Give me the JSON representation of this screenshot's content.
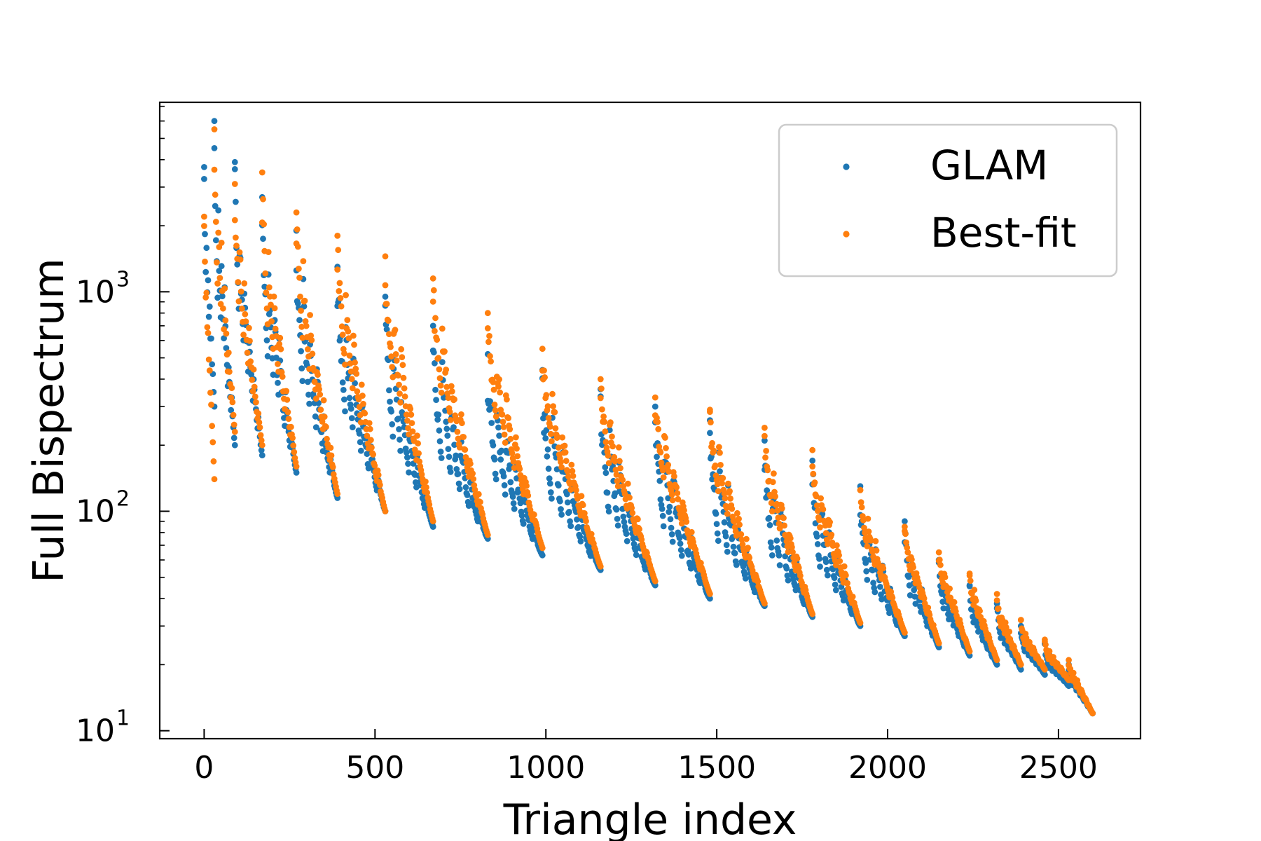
{
  "chart_data": {
    "type": "scatter",
    "xlabel": "Triangle index",
    "ylabel": "Full Bispectrum",
    "xlim": [
      -130,
      2740
    ],
    "ylim": [
      9.2,
      7300
    ],
    "yscale": "log",
    "x_ticks": [
      0,
      500,
      1000,
      1500,
      2000,
      2500
    ],
    "x_tick_labels": [
      "0",
      "500",
      "1000",
      "1500",
      "2000",
      "2500"
    ],
    "y_ticks": [
      10,
      100,
      1000
    ],
    "y_tick_labels": [
      {
        "base": "10",
        "exp": "1"
      },
      {
        "base": "10",
        "exp": "2"
      },
      {
        "base": "10",
        "exp": "3"
      }
    ],
    "legend": {
      "position": "top-right",
      "entries": [
        "GLAM",
        "Best-fit"
      ]
    },
    "grid": false,
    "series": [
      {
        "name": "GLAM",
        "color": "#1f77b4",
        "note_points": "sampled along each sawtooth segment: [start_index, end_index, value_at_start, value_at_end, inner_value]",
        "segments": [
          [
            0,
            30,
            3700,
            300,
            1500
          ],
          [
            30,
            90,
            6000,
            200,
            1100
          ],
          [
            90,
            170,
            3900,
            180,
            900
          ],
          [
            170,
            270,
            2700,
            150,
            600
          ],
          [
            270,
            390,
            1900,
            115,
            420
          ],
          [
            390,
            530,
            1300,
            100,
            330
          ],
          [
            530,
            670,
            950,
            85,
            250
          ],
          [
            670,
            830,
            700,
            75,
            190
          ],
          [
            830,
            990,
            520,
            63,
            150
          ],
          [
            990,
            1160,
            440,
            54,
            125
          ],
          [
            1160,
            1320,
            360,
            46,
            105
          ],
          [
            1320,
            1480,
            300,
            40,
            90
          ],
          [
            1480,
            1640,
            260,
            37,
            78
          ],
          [
            1640,
            1780,
            210,
            33,
            68
          ],
          [
            1780,
            1920,
            170,
            30,
            60
          ],
          [
            1920,
            2050,
            130,
            27,
            52
          ],
          [
            2050,
            2150,
            90,
            24,
            45
          ],
          [
            2150,
            2240,
            60,
            22,
            38
          ],
          [
            2240,
            2320,
            46,
            20,
            32
          ],
          [
            2320,
            2390,
            38,
            19,
            28
          ],
          [
            2390,
            2460,
            30,
            18,
            24
          ],
          [
            2460,
            2530,
            25,
            16,
            20
          ],
          [
            2530,
            2600,
            20,
            12,
            17
          ]
        ]
      },
      {
        "name": "Best-fit",
        "color": "#ff7f0e",
        "note_points": "sampled along each sawtooth segment: [start_index, end_index, value_at_start, value_at_end, inner_value]",
        "segments": [
          [
            0,
            30,
            2200,
            140,
            1300
          ],
          [
            30,
            90,
            5500,
            230,
            1300
          ],
          [
            90,
            170,
            3100,
            200,
            1000
          ],
          [
            170,
            270,
            3500,
            160,
            900
          ],
          [
            270,
            390,
            2300,
            120,
            750
          ],
          [
            390,
            530,
            1800,
            100,
            600
          ],
          [
            530,
            670,
            1450,
            90,
            520
          ],
          [
            670,
            830,
            1150,
            78,
            430
          ],
          [
            830,
            990,
            800,
            68,
            330
          ],
          [
            990,
            1160,
            550,
            56,
            260
          ],
          [
            1160,
            1320,
            400,
            48,
            200
          ],
          [
            1320,
            1480,
            330,
            42,
            170
          ],
          [
            1480,
            1640,
            290,
            38,
            145
          ],
          [
            1640,
            1780,
            240,
            34,
            120
          ],
          [
            1780,
            1920,
            190,
            31,
            100
          ],
          [
            1920,
            2050,
            125,
            28,
            80
          ],
          [
            2050,
            2150,
            85,
            25,
            62
          ],
          [
            2150,
            2240,
            65,
            23,
            50
          ],
          [
            2240,
            2320,
            52,
            21,
            40
          ],
          [
            2320,
            2390,
            42,
            20,
            32
          ],
          [
            2390,
            2460,
            32,
            19,
            26
          ],
          [
            2460,
            2530,
            26,
            17,
            22
          ],
          [
            2530,
            2600,
            21,
            12,
            18
          ]
        ]
      }
    ]
  }
}
